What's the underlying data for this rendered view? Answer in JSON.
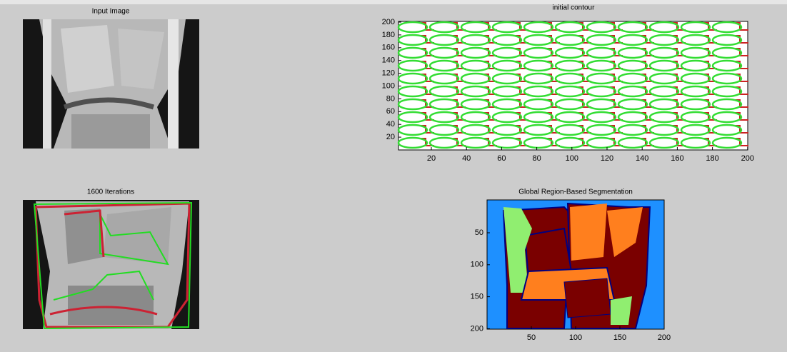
{
  "panels": [
    {
      "title": "Input Image"
    },
    {
      "title": "initial contour",
      "yticks": [
        200,
        180,
        160,
        140,
        120,
        100,
        80,
        60,
        40,
        20
      ],
      "xticks": [
        20,
        40,
        60,
        80,
        100,
        120,
        140,
        160,
        180,
        200
      ]
    },
    {
      "title": "1600 Iterations"
    },
    {
      "title": "Global Region-Based Segmentation",
      "yticks": [
        50,
        100,
        150,
        200
      ],
      "xticks": [
        50,
        100,
        150,
        200
      ]
    }
  ]
}
